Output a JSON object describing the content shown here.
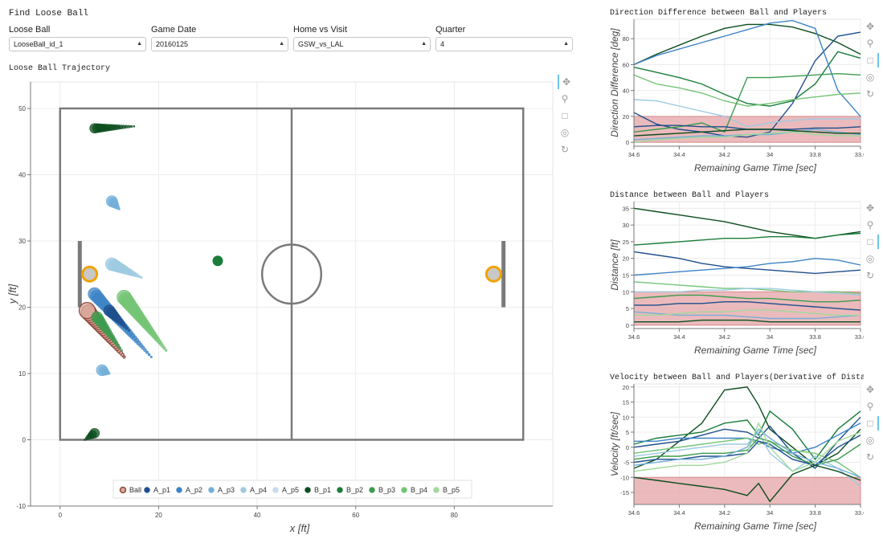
{
  "app": {
    "title": "Find Loose Ball"
  },
  "controls": [
    {
      "label": "Loose Ball",
      "value": "LooseBall_id_1"
    },
    {
      "label": "Game Date",
      "value": "20160125"
    },
    {
      "label": "Home vs Visit",
      "value": "GSW_vs_LAL"
    },
    {
      "label": "Quarter",
      "value": "4"
    }
  ],
  "trajectory": {
    "title": "Loose Ball Trajectory",
    "xlabel": "x [ft]",
    "ylabel": "y [ft]",
    "xticks": [
      "0",
      "20",
      "40",
      "60",
      "80"
    ],
    "yticks": [
      "-10",
      "0",
      "10",
      "20",
      "30",
      "40",
      "50"
    ],
    "legend": [
      "Ball",
      "A_p1",
      "A_p2",
      "A_p3",
      "A_p4",
      "A_p5",
      "B_p1",
      "B_p2",
      "B_p3",
      "B_p4",
      "B_p5"
    ]
  },
  "toolbar_icons": [
    "pan-icon",
    "box-zoom-icon",
    "box-select-icon",
    "wheel-zoom-icon",
    "reset-icon"
  ],
  "colors": {
    "ball": "#8c4a3c",
    "a_p1": "#1f4e8c",
    "a_p2": "#3d84c6",
    "a_p3": "#74b0d9",
    "a_p4": "#9ecae1",
    "a_p5": "#c6dbef",
    "b_p1": "#0b4d1e",
    "b_p2": "#1a7d3a",
    "b_p3": "#3c9c4e",
    "b_p4": "#74c476",
    "b_p5": "#a1d99b",
    "threshold": "#e8aeb0",
    "hoop": "#f2a200"
  },
  "chart_data": [
    {
      "type": "line",
      "title": "Direction Difference between Ball and Players",
      "xlabel": "Remaining Game Time [sec]",
      "ylabel": "Direction Difference [deg]",
      "x": [
        34.6,
        34.5,
        34.4,
        34.3,
        34.2,
        34.1,
        34.0,
        33.9,
        33.8,
        33.7,
        33.6
      ],
      "xlim": [
        34.6,
        33.6
      ],
      "ylim": [
        -3,
        95
      ],
      "xticks": [
        "34.6",
        "34.4",
        "34.2",
        "34",
        "33.8",
        "33.6"
      ],
      "yticks": [
        "0",
        "20",
        "40",
        "60",
        "80"
      ],
      "threshold": [
        0,
        20
      ],
      "series": [
        {
          "values": [
            60,
            68,
            75,
            82,
            88,
            91,
            91,
            89,
            84,
            77,
            68
          ]
        },
        {
          "values": [
            58,
            54,
            50,
            45,
            37,
            30,
            28,
            32,
            45,
            70,
            65
          ]
        },
        {
          "values": [
            23,
            14,
            10,
            8,
            5,
            4,
            8,
            30,
            63,
            82,
            85
          ]
        },
        {
          "values": [
            60,
            67,
            72,
            77,
            82,
            87,
            92,
            94,
            88,
            40,
            20
          ]
        },
        {
          "values": [
            52,
            45,
            42,
            38,
            32,
            28,
            30,
            33,
            35,
            37,
            38
          ]
        },
        {
          "values": [
            33,
            32,
            28,
            24,
            20,
            12,
            15,
            17,
            18,
            18,
            18
          ]
        },
        {
          "values": [
            8,
            10,
            12,
            15,
            8,
            50,
            50,
            51,
            52,
            53,
            52
          ]
        },
        {
          "values": [
            12,
            13,
            13,
            12,
            12,
            10,
            10,
            10,
            11,
            11,
            12
          ]
        },
        {
          "values": [
            2,
            3,
            4,
            5,
            5,
            6,
            6,
            8,
            10,
            8,
            6
          ]
        },
        {
          "values": [
            0,
            2,
            3,
            4,
            4,
            6,
            7,
            8,
            6,
            5,
            5
          ]
        },
        {
          "values": [
            5,
            6,
            7,
            8,
            9,
            10,
            10,
            9,
            8,
            7,
            7
          ]
        }
      ]
    },
    {
      "type": "line",
      "title": "Distance between Ball and Players",
      "xlabel": "Remaining Game Time [sec]",
      "ylabel": "Distance [ft]",
      "x": [
        34.6,
        34.5,
        34.4,
        34.3,
        34.2,
        34.1,
        34.0,
        33.9,
        33.8,
        33.7,
        33.6
      ],
      "xlim": [
        34.6,
        33.6
      ],
      "ylim": [
        -1,
        37
      ],
      "xticks": [
        "34.6",
        "34.4",
        "34.2",
        "34",
        "33.8",
        "33.6"
      ],
      "yticks": [
        "0",
        "5",
        "10",
        "15",
        "20",
        "25",
        "30",
        "35"
      ],
      "threshold": [
        0,
        10
      ],
      "series": [
        {
          "values": [
            35,
            34,
            33,
            32,
            31,
            29.5,
            28,
            27,
            26,
            27,
            28
          ]
        },
        {
          "values": [
            24,
            24.5,
            25,
            25.5,
            26,
            26,
            26.5,
            26.5,
            26,
            27,
            27.5
          ]
        },
        {
          "values": [
            22,
            21,
            20,
            18.5,
            17.5,
            17,
            16.5,
            16,
            15.5,
            16,
            16.5
          ]
        },
        {
          "values": [
            15,
            15.5,
            16,
            16.5,
            17,
            17.5,
            18.5,
            19,
            20,
            19.5,
            18
          ]
        },
        {
          "values": [
            13,
            12.5,
            12,
            11.5,
            11,
            11,
            10.5,
            10,
            10,
            10,
            9.5
          ]
        },
        {
          "values": [
            10,
            10,
            10,
            10.5,
            10.5,
            11,
            11,
            10.5,
            10,
            9.5,
            9
          ]
        },
        {
          "values": [
            8,
            8.5,
            9,
            9,
            8.5,
            8,
            8,
            7.5,
            7,
            7,
            7.5
          ]
        },
        {
          "values": [
            6,
            6,
            6.5,
            6.5,
            7,
            7,
            6.5,
            6,
            5.5,
            5,
            4.5
          ]
        },
        {
          "values": [
            4,
            3.5,
            3,
            3,
            3,
            2.5,
            2,
            2,
            2,
            2.5,
            3
          ]
        },
        {
          "values": [
            3,
            3,
            3.5,
            4,
            4,
            4.5,
            4.5,
            4,
            3.5,
            3,
            3
          ]
        },
        {
          "values": [
            1,
            1,
            1,
            1.5,
            1.5,
            1.5,
            1,
            1,
            1,
            1,
            1
          ]
        }
      ]
    },
    {
      "type": "line",
      "title": "Velocity between Ball and Players(Derivative of Distance)",
      "xlabel": "Remaining Game Time [sec]",
      "ylabel": "Velocity [ft/sec]",
      "x": [
        34.6,
        34.5,
        34.4,
        34.3,
        34.2,
        34.1,
        34.05,
        34.0,
        33.9,
        33.8,
        33.7,
        33.6
      ],
      "xlim": [
        34.6,
        33.6
      ],
      "ylim": [
        -19,
        21
      ],
      "xticks": [
        "34.6",
        "34.4",
        "34.2",
        "34",
        "33.8",
        "33.6"
      ],
      "yticks": [
        "-15",
        "-10",
        "-5",
        "0",
        "5",
        "10",
        "15",
        "20"
      ],
      "threshold": [
        -20,
        -10
      ],
      "series": [
        {
          "values": [
            -7,
            -4,
            2,
            8,
            19,
            20,
            14,
            6,
            0,
            -6,
            -2,
            6
          ]
        },
        {
          "values": [
            1,
            3,
            4,
            5,
            8,
            9,
            4,
            12,
            6,
            -4,
            6,
            12
          ]
        },
        {
          "values": [
            0,
            1,
            2,
            4,
            6,
            5,
            3,
            7,
            -2,
            -7,
            2,
            10
          ]
        },
        {
          "values": [
            2,
            2,
            3,
            3,
            3,
            3,
            2,
            0,
            -2,
            0,
            4,
            8
          ]
        },
        {
          "values": [
            -2,
            -1,
            0,
            1,
            2,
            3,
            1,
            2,
            -1,
            -2,
            -5,
            -10
          ]
        },
        {
          "values": [
            -3,
            -2,
            -1,
            0,
            1,
            1,
            5,
            -2,
            -8,
            -3,
            -7,
            -13
          ]
        },
        {
          "values": [
            -4,
            -3,
            -3,
            -2,
            -2,
            -1,
            3,
            2,
            -3,
            -6,
            -4,
            1
          ]
        },
        {
          "values": [
            -5,
            -4,
            -4,
            -3,
            -3,
            -2,
            2,
            1,
            -4,
            -6,
            0,
            4
          ]
        },
        {
          "values": [
            -6,
            -5,
            -4,
            -4,
            -3,
            0,
            6,
            3,
            -2,
            -5,
            -7,
            -10
          ]
        },
        {
          "values": [
            -8,
            -7,
            -6,
            -6,
            -5,
            -2,
            8,
            0,
            -8,
            -5,
            2,
            5
          ]
        },
        {
          "values": [
            -10,
            -11,
            -12,
            -13,
            -14,
            -16,
            -12,
            -18,
            -9,
            -6,
            -8,
            -11
          ]
        }
      ]
    }
  ]
}
